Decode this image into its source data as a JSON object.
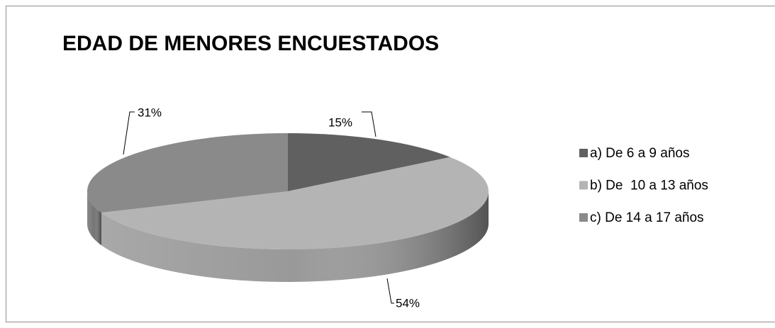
{
  "chart_data": {
    "type": "pie",
    "title": "EDAD DE MENORES ENCUESTADOS",
    "categories": [
      "a) De 6 a 9 años",
      "b) De  10 a 13 años",
      "c) De 14 a 17 años"
    ],
    "values": [
      15,
      54,
      31
    ],
    "value_labels": [
      "15%",
      "54%",
      "31%"
    ],
    "colors": [
      "#606060",
      "#b4b4b4",
      "#8a8a8a"
    ],
    "legend": "right"
  }
}
